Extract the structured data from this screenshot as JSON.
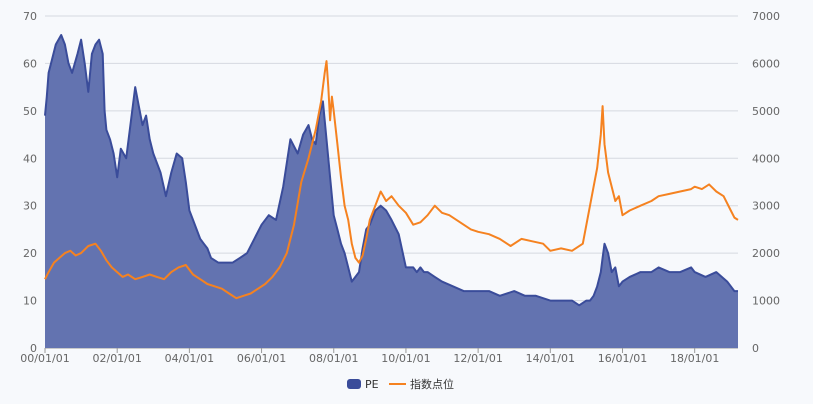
{
  "chart_data": {
    "type": "line",
    "title": "",
    "xlabel": "",
    "ylabel_left": "",
    "ylabel_right": "",
    "grid": true,
    "legend_position": "bottom-center",
    "x_tick_labels": [
      "00/01/01",
      "02/01/01",
      "04/01/01",
      "06/01/01",
      "08/01/01",
      "10/01/01",
      "12/01/01",
      "14/01/01",
      "16/01/01",
      "18/01/01"
    ],
    "x_range": [
      2000.0,
      2019.2
    ],
    "y_left": {
      "ticks": [
        "0",
        "10",
        "20",
        "30",
        "40",
        "50",
        "60",
        "70"
      ],
      "range": [
        0,
        70
      ]
    },
    "y_right": {
      "ticks": [
        "0",
        "1000",
        "2000",
        "3000",
        "4000",
        "5000",
        "6000",
        "7000"
      ],
      "range": [
        0,
        7000
      ]
    },
    "series": [
      {
        "name": "PE",
        "kind": "area",
        "axis": "left",
        "color": "#3a4c9a",
        "fill": "#6373b0",
        "x": [
          2000.0,
          2000.05,
          2000.1,
          2000.2,
          2000.3,
          2000.45,
          2000.55,
          2000.65,
          2000.75,
          2000.9,
          2001.0,
          2001.1,
          2001.2,
          2001.3,
          2001.4,
          2001.5,
          2001.6,
          2001.65,
          2001.7,
          2001.8,
          2001.9,
          2002.0,
          2002.1,
          2002.25,
          2002.4,
          2002.5,
          2002.6,
          2002.7,
          2002.8,
          2002.9,
          2003.0,
          2003.2,
          2003.35,
          2003.5,
          2003.65,
          2003.8,
          2003.9,
          2004.0,
          2004.1,
          2004.2,
          2004.3,
          2004.4,
          2004.5,
          2004.6,
          2004.8,
          2005.0,
          2005.2,
          2005.4,
          2005.6,
          2005.8,
          2006.0,
          2006.2,
          2006.4,
          2006.6,
          2006.8,
          2007.0,
          2007.15,
          2007.3,
          2007.4,
          2007.5,
          2007.6,
          2007.7,
          2007.8,
          2007.9,
          2008.0,
          2008.1,
          2008.2,
          2008.3,
          2008.4,
          2008.5,
          2008.6,
          2008.7,
          2008.8,
          2008.9,
          2009.0,
          2009.15,
          2009.3,
          2009.45,
          2009.6,
          2009.8,
          2010.0,
          2010.1,
          2010.2,
          2010.3,
          2010.4,
          2010.5,
          2010.6,
          2010.8,
          2011.0,
          2011.3,
          2011.6,
          2012.0,
          2012.3,
          2012.6,
          2013.0,
          2013.3,
          2013.6,
          2014.0,
          2014.3,
          2014.6,
          2014.8,
          2015.0,
          2015.1,
          2015.2,
          2015.3,
          2015.4,
          2015.45,
          2015.5,
          2015.6,
          2015.7,
          2015.8,
          2015.9,
          2016.0,
          2016.2,
          2016.5,
          2016.8,
          2017.0,
          2017.3,
          2017.6,
          2017.9,
          2018.0,
          2018.3,
          2018.6,
          2018.9,
          2019.0,
          2019.1,
          2019.2
        ],
        "y": [
          49,
          53,
          58,
          61,
          64,
          66,
          64,
          60,
          58,
          62,
          65,
          60,
          54,
          62,
          64,
          65,
          62,
          50,
          46,
          44,
          41,
          36,
          42,
          40,
          49,
          55,
          51,
          47,
          49,
          44,
          41,
          37,
          32,
          37,
          41,
          40,
          35,
          29,
          27,
          25,
          23,
          22,
          21,
          19,
          18,
          18,
          18,
          19,
          20,
          23,
          26,
          28,
          27,
          34,
          44,
          41,
          45,
          47,
          44,
          43,
          49,
          52,
          44,
          36,
          28,
          25,
          22,
          20,
          17,
          14,
          15,
          16,
          21,
          25,
          26,
          29,
          30,
          29,
          27,
          24,
          17,
          17,
          17,
          16,
          17,
          16,
          16,
          15,
          14,
          13,
          12,
          12,
          12,
          11,
          12,
          11,
          11,
          10,
          10,
          10,
          9,
          10,
          10,
          11,
          13,
          16,
          19,
          22,
          20,
          16,
          17,
          13,
          14,
          15,
          16,
          16,
          17,
          16,
          16,
          17,
          16,
          15,
          16,
          14,
          13,
          12,
          12
        ]
      },
      {
        "name": "指数点位",
        "kind": "line",
        "axis": "right",
        "color": "#f58220",
        "x": [
          2000.0,
          2000.1,
          2000.25,
          2000.4,
          2000.55,
          2000.7,
          2000.85,
          2001.0,
          2001.2,
          2001.4,
          2001.55,
          2001.7,
          2001.85,
          2002.0,
          2002.15,
          2002.3,
          2002.5,
          2002.7,
          2002.9,
          2003.1,
          2003.3,
          2003.5,
          2003.7,
          2003.9,
          2004.1,
          2004.3,
          2004.5,
          2004.7,
          2004.9,
          2005.1,
          2005.3,
          2005.5,
          2005.7,
          2005.9,
          2006.1,
          2006.3,
          2006.5,
          2006.7,
          2006.9,
          2007.1,
          2007.3,
          2007.5,
          2007.65,
          2007.75,
          2007.8,
          2007.85,
          2007.9,
          2007.95,
          2008.0,
          2008.1,
          2008.2,
          2008.3,
          2008.4,
          2008.5,
          2008.6,
          2008.7,
          2008.8,
          2008.9,
          2009.0,
          2009.15,
          2009.3,
          2009.45,
          2009.6,
          2009.8,
          2010.0,
          2010.2,
          2010.4,
          2010.6,
          2010.8,
          2011.0,
          2011.2,
          2011.4,
          2011.6,
          2011.8,
          2012.0,
          2012.3,
          2012.6,
          2012.9,
          2013.2,
          2013.5,
          2013.8,
          2014.0,
          2014.3,
          2014.6,
          2014.9,
          2015.0,
          2015.1,
          2015.2,
          2015.3,
          2015.4,
          2015.45,
          2015.5,
          2015.55,
          2015.6,
          2015.7,
          2015.8,
          2015.9,
          2016.0,
          2016.2,
          2016.5,
          2016.8,
          2017.0,
          2017.3,
          2017.6,
          2017.9,
          2018.0,
          2018.2,
          2018.4,
          2018.6,
          2018.8,
          2019.0,
          2019.1,
          2019.2
        ],
        "y": [
          1450,
          1600,
          1800,
          1900,
          2000,
          2050,
          1950,
          2000,
          2150,
          2200,
          2050,
          1850,
          1700,
          1600,
          1500,
          1550,
          1450,
          1500,
          1550,
          1500,
          1450,
          1600,
          1700,
          1750,
          1550,
          1450,
          1350,
          1300,
          1250,
          1150,
          1050,
          1100,
          1150,
          1250,
          1350,
          1500,
          1700,
          2000,
          2600,
          3500,
          4000,
          4600,
          5200,
          5800,
          6050,
          5500,
          4800,
          5300,
          5000,
          4300,
          3600,
          3000,
          2700,
          2200,
          1900,
          1800,
          1950,
          2300,
          2700,
          3000,
          3300,
          3100,
          3200,
          3000,
          2850,
          2600,
          2650,
          2800,
          3000,
          2850,
          2800,
          2700,
          2600,
          2500,
          2450,
          2400,
          2300,
          2150,
          2300,
          2250,
          2200,
          2050,
          2100,
          2050,
          2200,
          2600,
          3000,
          3400,
          3800,
          4500,
          5100,
          4300,
          4000,
          3700,
          3400,
          3100,
          3200,
          2800,
          2900,
          3000,
          3100,
          3200,
          3250,
          3300,
          3350,
          3400,
          3350,
          3450,
          3300,
          3200,
          2900,
          2750,
          2700
        ]
      }
    ]
  }
}
